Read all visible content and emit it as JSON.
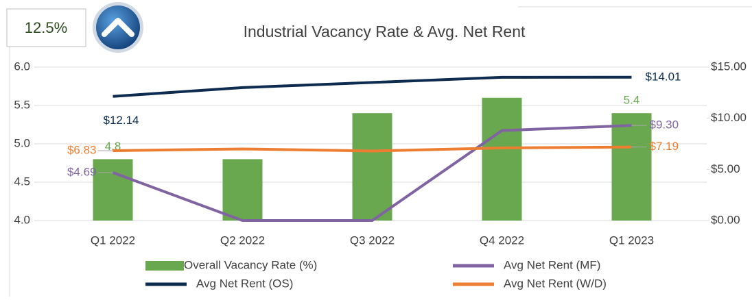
{
  "badge": "12.5%",
  "chart_data": {
    "type": "bar-line",
    "title": "Industrial Vacancy Rate & Avg. Net Rent",
    "categories": [
      "Q1 2022",
      "Q2 2022",
      "Q3 2022",
      "Q4 2022",
      "Q1 2023"
    ],
    "ylim": [
      4,
      6
    ],
    "yticks": [
      {
        "value": 4,
        "label": "4.0"
      },
      4.5,
      {
        "value": 5,
        "label": "5.0"
      },
      5.5,
      {
        "value": 6,
        "label": "6.0"
      }
    ],
    "y2lim": [
      0,
      15
    ],
    "y2ticks": [
      {
        "value": 0,
        "label": "$0.00"
      },
      {
        "value": 5,
        "label": "$5.00"
      },
      {
        "value": 10,
        "label": "$10.00"
      },
      {
        "value": 15,
        "label": "$15.00"
      }
    ],
    "grid": true,
    "legend": "bottom",
    "series": [
      {
        "name": "Overall Vacancy Rate (%)",
        "kind": "bar",
        "color": "#6aa84f",
        "values": [
          4.8,
          4.8,
          5.4,
          5.6,
          5.4
        ],
        "value_labels": [
          "4.8",
          null,
          null,
          null,
          "5.4"
        ]
      },
      {
        "name": "Avg Net Rent (MF)",
        "kind": "line",
        "axis": "y2",
        "color": "#8064a2",
        "values": [
          4.69,
          0,
          0,
          8.8,
          9.3
        ],
        "value_labels": [
          "$4.69",
          null,
          null,
          null,
          "$9.30"
        ]
      },
      {
        "name": "Avg Net Rent (OS)",
        "kind": "line",
        "axis": "y2",
        "color": "#0d2c4f",
        "values": [
          12.14,
          13.0,
          13.5,
          14.0,
          14.01
        ],
        "value_labels": [
          "$12.14",
          null,
          null,
          null,
          "$14.01"
        ]
      },
      {
        "name": "Avg Net Rent (W/D)",
        "kind": "line",
        "axis": "y2",
        "color": "#ed7d31",
        "values": [
          6.83,
          7.0,
          6.8,
          7.1,
          7.19
        ],
        "value_labels": [
          "$6.83",
          null,
          null,
          null,
          "$7.19"
        ]
      }
    ]
  }
}
